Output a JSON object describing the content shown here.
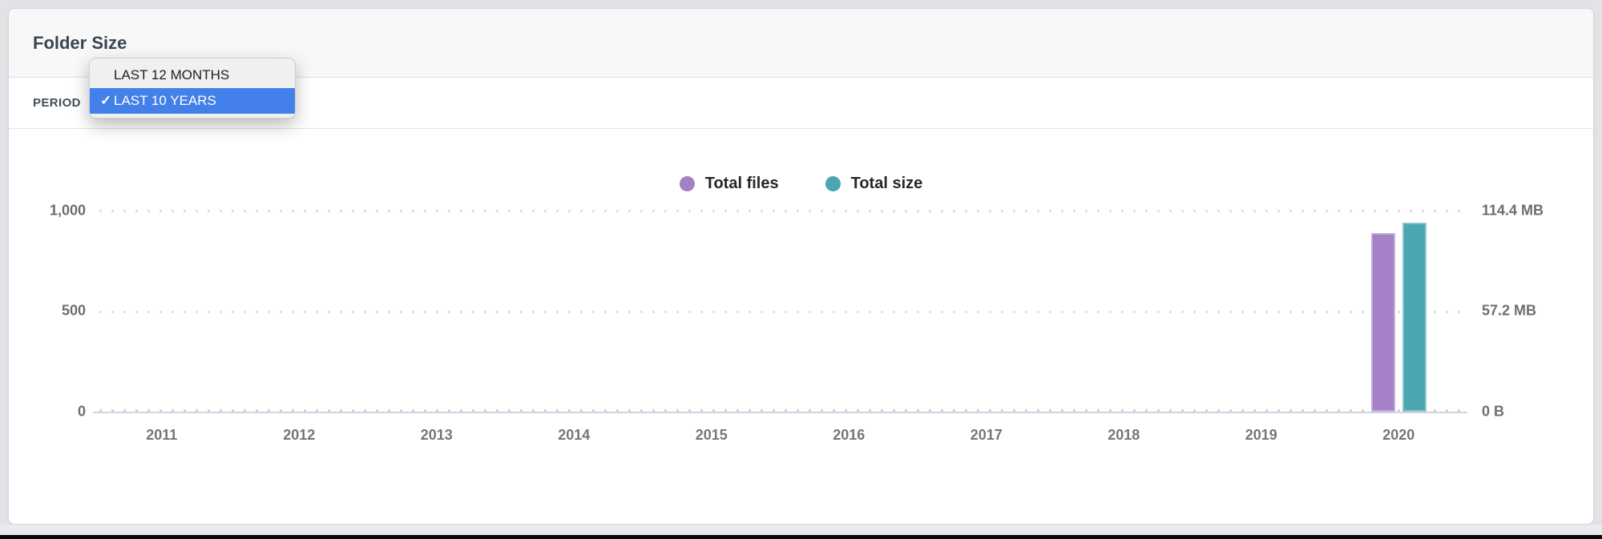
{
  "panel": {
    "title": "Folder Size"
  },
  "period": {
    "label": "PERIOD",
    "checkmark_glyph": "✓",
    "menu": {
      "items": [
        {
          "label": "LAST 12 MONTHS",
          "selected": false
        },
        {
          "label": "LAST 10 YEARS",
          "selected": true
        }
      ]
    }
  },
  "chart_data": {
    "type": "bar",
    "title": "Folder Size",
    "categories": [
      "2011",
      "2012",
      "2013",
      "2014",
      "2015",
      "2016",
      "2017",
      "2018",
      "2019",
      "2020"
    ],
    "series": [
      {
        "name": "Total files",
        "color": "#a481c6",
        "axis": "left",
        "axis_max": 1000,
        "values": [
          0,
          0,
          0,
          0,
          0,
          0,
          0,
          0,
          0,
          890
        ]
      },
      {
        "name": "Total size",
        "color": "#4ba6b1",
        "axis": "right",
        "axis_max": 114.4,
        "unit": "MB",
        "values": [
          0,
          0,
          0,
          0,
          0,
          0,
          0,
          0,
          0,
          107.5
        ]
      }
    ],
    "left_axis": {
      "ticks": [
        "1,000",
        "500",
        "0"
      ],
      "max": 1000
    },
    "right_axis": {
      "ticks": [
        "114.4 MB",
        "57.2 MB",
        "0 B"
      ],
      "max_mb": 114.4
    },
    "grid": "dotted horizontal",
    "legend_position": "top-center",
    "xlabel": "",
    "ylabel": ""
  },
  "colors": {
    "accent_blue": "#4480e9",
    "bar_purple": "#a481c6",
    "bar_teal": "#4ba6b1"
  }
}
